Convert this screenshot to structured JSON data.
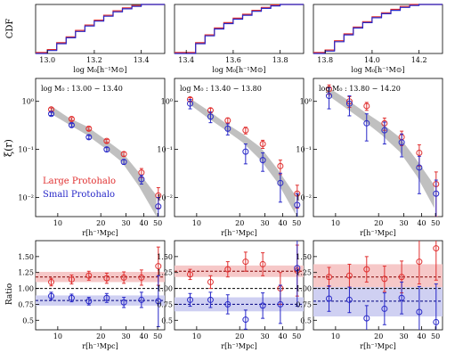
{
  "chart_data": {
    "type": "multi-panel",
    "layout": {
      "rows": 3,
      "cols": 3
    },
    "common": {
      "r_ticks": [
        10,
        20,
        30,
        40,
        50
      ],
      "r_labels": [
        "10",
        "20",
        "30",
        "40",
        "50"
      ],
      "xlabel_r": "r[h⁻¹Mpc]",
      "ylabel_cdf": "CDF",
      "ylabel_xi": "ξ(r)",
      "ylabel_ratio": "Ratio",
      "xlabel_cdf": "log M₀[h⁻¹M⊙]",
      "xi_ylim": [
        0.004,
        3.0
      ],
      "xi_ticklabels": [
        "10⁻²",
        "10⁻¹",
        "10⁰"
      ],
      "ratio_ylim": [
        0.35,
        1.75
      ],
      "ratio_ticks": [
        0.5,
        0.75,
        1.0,
        1.25,
        1.5
      ],
      "ratio_ticklabels": [
        "0.5",
        "0.75",
        "1.00",
        "1.25",
        "1.50"
      ],
      "colors": {
        "large": "#e03030",
        "small": "#2828c8",
        "band": "#c0c0c0",
        "dark": "#000080"
      }
    },
    "legend": {
      "entries": [
        "Large Protohalo",
        "Small Protohalo"
      ],
      "placement": "lower-left of first xi panel"
    },
    "columns": [
      {
        "cdf": {
          "xlim": [
            12.95,
            13.5
          ],
          "xticks": [
            13.0,
            13.2,
            13.4
          ],
          "xticklabels": [
            "13.0",
            "13.2",
            "13.4"
          ],
          "step_x": [
            12.95,
            13.0,
            13.04,
            13.08,
            13.12,
            13.16,
            13.2,
            13.24,
            13.28,
            13.32,
            13.36,
            13.4,
            13.5
          ],
          "step_y": [
            0.0,
            0.06,
            0.2,
            0.32,
            0.45,
            0.56,
            0.66,
            0.76,
            0.85,
            0.91,
            0.96,
            1.0,
            1.0
          ]
        },
        "xi": {
          "annotation": "log M₀ : 13.00 − 13.40",
          "r": [
            9.0,
            12.0,
            16.0,
            21.0,
            28.0,
            37.0,
            49.0
          ],
          "band_lo": [
            0.55,
            0.33,
            0.2,
            0.11,
            0.055,
            0.017,
            0.004
          ],
          "band_hi": [
            0.8,
            0.45,
            0.3,
            0.17,
            0.09,
            0.033,
            0.011
          ],
          "large": {
            "r": [
              9.0,
              12.5,
              16.5,
              22.0,
              29.0,
              38.5,
              50.5
            ],
            "y": [
              0.68,
              0.43,
              0.27,
              0.15,
              0.08,
              0.033,
              0.011
            ],
            "err": [
              0.05,
              0.03,
              0.02,
              0.012,
              0.008,
              0.007,
              0.005
            ]
          },
          "small": {
            "r": [
              9.0,
              12.5,
              16.5,
              22.0,
              29.0,
              38.5,
              50.5
            ],
            "y": [
              0.55,
              0.32,
              0.18,
              0.1,
              0.055,
              0.024,
              0.0065
            ],
            "err": [
              0.04,
              0.025,
              0.015,
              0.01,
              0.006,
              0.005,
              0.0035
            ]
          }
        },
        "ratio": {
          "large_mean": 1.18,
          "large_band": [
            1.1,
            1.26
          ],
          "small_mean": 0.81,
          "small_band": [
            0.73,
            0.89
          ],
          "large": {
            "r": [
              9.0,
              12.5,
              16.5,
              22.0,
              29.0,
              38.5,
              50.5
            ],
            "y": [
              1.1,
              1.14,
              1.2,
              1.16,
              1.17,
              1.17,
              1.35
            ],
            "err": [
              0.06,
              0.07,
              0.07,
              0.08,
              0.09,
              0.12,
              0.3
            ]
          },
          "small": {
            "r": [
              9.0,
              12.5,
              16.5,
              22.0,
              29.0,
              38.5,
              50.5
            ],
            "y": [
              0.88,
              0.85,
              0.8,
              0.85,
              0.78,
              0.82,
              0.8
            ],
            "err": [
              0.06,
              0.06,
              0.06,
              0.07,
              0.08,
              0.12,
              0.4
            ]
          }
        }
      },
      {
        "cdf": {
          "xlim": [
            13.35,
            13.9
          ],
          "xticks": [
            13.4,
            13.6,
            13.8
          ],
          "xticklabels": [
            "13.4",
            "13.6",
            "13.8"
          ],
          "step_x": [
            13.35,
            13.4,
            13.44,
            13.48,
            13.52,
            13.56,
            13.6,
            13.64,
            13.68,
            13.72,
            13.76,
            13.8,
            13.9
          ],
          "step_y": [
            0.0,
            0.0,
            0.2,
            0.36,
            0.5,
            0.61,
            0.7,
            0.78,
            0.86,
            0.92,
            0.97,
            1.0,
            1.0
          ]
        },
        "xi": {
          "annotation": "log M₀ : 13.40 − 13.80",
          "r": [
            9.0,
            12.0,
            16.0,
            21.0,
            28.0,
            37.0,
            49.0
          ],
          "band_lo": [
            0.85,
            0.45,
            0.25,
            0.14,
            0.06,
            0.02,
            0.0045
          ],
          "band_hi": [
            1.15,
            0.65,
            0.35,
            0.21,
            0.11,
            0.038,
            0.011
          ],
          "large": {
            "r": [
              9.0,
              12.5,
              16.5,
              22.0,
              29.0,
              38.5,
              50.5
            ],
            "y": [
              1.1,
              0.65,
              0.4,
              0.25,
              0.13,
              0.045,
              0.012
            ],
            "err": [
              0.1,
              0.07,
              0.05,
              0.04,
              0.025,
              0.015,
              0.006
            ]
          },
          "small": {
            "r": [
              9.0,
              12.5,
              16.5,
              22.0,
              29.0,
              38.5,
              50.5
            ],
            "y": [
              0.9,
              0.48,
              0.27,
              0.09,
              0.06,
              0.02,
              0.007
            ],
            "err": [
              0.2,
              0.12,
              0.07,
              0.04,
              0.025,
              0.012,
              0.005
            ]
          }
        },
        "ratio": {
          "large_mean": 1.27,
          "large_band": [
            1.18,
            1.36
          ],
          "small_mean": 0.75,
          "small_band": [
            0.64,
            0.86
          ],
          "large": {
            "r": [
              9.0,
              12.5,
              16.5,
              22.0,
              29.0,
              38.5,
              50.5
            ],
            "y": [
              1.22,
              1.1,
              1.3,
              1.42,
              1.38,
              1.0,
              1.28
            ],
            "err": [
              0.08,
              0.1,
              0.12,
              0.15,
              0.18,
              0.25,
              0.4
            ]
          },
          "small": {
            "r": [
              9.0,
              12.5,
              16.5,
              22.0,
              29.0,
              38.5,
              50.5
            ],
            "y": [
              0.82,
              0.82,
              0.75,
              0.51,
              0.73,
              0.75,
              1.32
            ],
            "err": [
              0.1,
              0.12,
              0.15,
              0.15,
              0.2,
              0.3,
              0.6
            ]
          }
        }
      },
      {
        "cdf": {
          "xlim": [
            13.75,
            14.3
          ],
          "xticks": [
            13.8,
            14.0,
            14.2
          ],
          "xticklabels": [
            "13.8",
            "14.0",
            "14.2"
          ],
          "step_x": [
            13.75,
            13.8,
            13.84,
            13.88,
            13.92,
            13.96,
            14.0,
            14.04,
            14.08,
            14.12,
            14.16,
            14.2,
            14.3
          ],
          "step_y": [
            0.0,
            0.05,
            0.24,
            0.38,
            0.52,
            0.63,
            0.73,
            0.81,
            0.88,
            0.94,
            0.98,
            1.0,
            1.0
          ]
        },
        "xi": {
          "annotation": "log M₀ : 13.80 − 14.20",
          "r": [
            9.0,
            12.0,
            16.0,
            21.0,
            28.0,
            37.0,
            49.0
          ],
          "band_lo": [
            1.3,
            0.7,
            0.38,
            0.2,
            0.09,
            0.028,
            0.006
          ],
          "band_hi": [
            1.9,
            1.1,
            0.6,
            0.35,
            0.18,
            0.06,
            0.018
          ],
          "large": {
            "r": [
              9.0,
              12.5,
              16.5,
              22.0,
              29.0,
              38.5,
              50.5
            ],
            "y": [
              1.8,
              1.0,
              0.8,
              0.35,
              0.18,
              0.085,
              0.019
            ],
            "err": [
              0.4,
              0.25,
              0.15,
              0.1,
              0.06,
              0.04,
              0.015
            ]
          },
          "small": {
            "r": [
              9.0,
              12.5,
              16.5,
              22.0,
              29.0,
              38.5,
              50.5
            ],
            "y": [
              1.3,
              0.9,
              0.35,
              0.25,
              0.14,
              0.042,
              0.012
            ],
            "err": [
              0.6,
              0.4,
              0.2,
              0.12,
              0.07,
              0.03,
              0.011
            ]
          }
        },
        "ratio": {
          "large_mean": 1.18,
          "large_band": [
            1.0,
            1.38
          ],
          "small_mean": 0.8,
          "small_band": [
            0.56,
            1.02
          ],
          "large": {
            "r": [
              9.0,
              12.5,
              16.5,
              22.0,
              29.0,
              38.5,
              50.5
            ],
            "y": [
              1.18,
              1.2,
              1.3,
              1.15,
              1.18,
              1.42,
              1.63
            ],
            "err": [
              0.15,
              0.18,
              0.2,
              0.2,
              0.25,
              0.35,
              0.5
            ]
          },
          "small": {
            "r": [
              9.0,
              12.5,
              16.5,
              22.0,
              29.0,
              38.5,
              50.5
            ],
            "y": [
              0.84,
              0.82,
              0.53,
              0.68,
              0.85,
              0.63,
              0.47
            ],
            "err": [
              0.2,
              0.2,
              0.2,
              0.25,
              0.25,
              0.4,
              0.6
            ]
          }
        }
      }
    ]
  }
}
